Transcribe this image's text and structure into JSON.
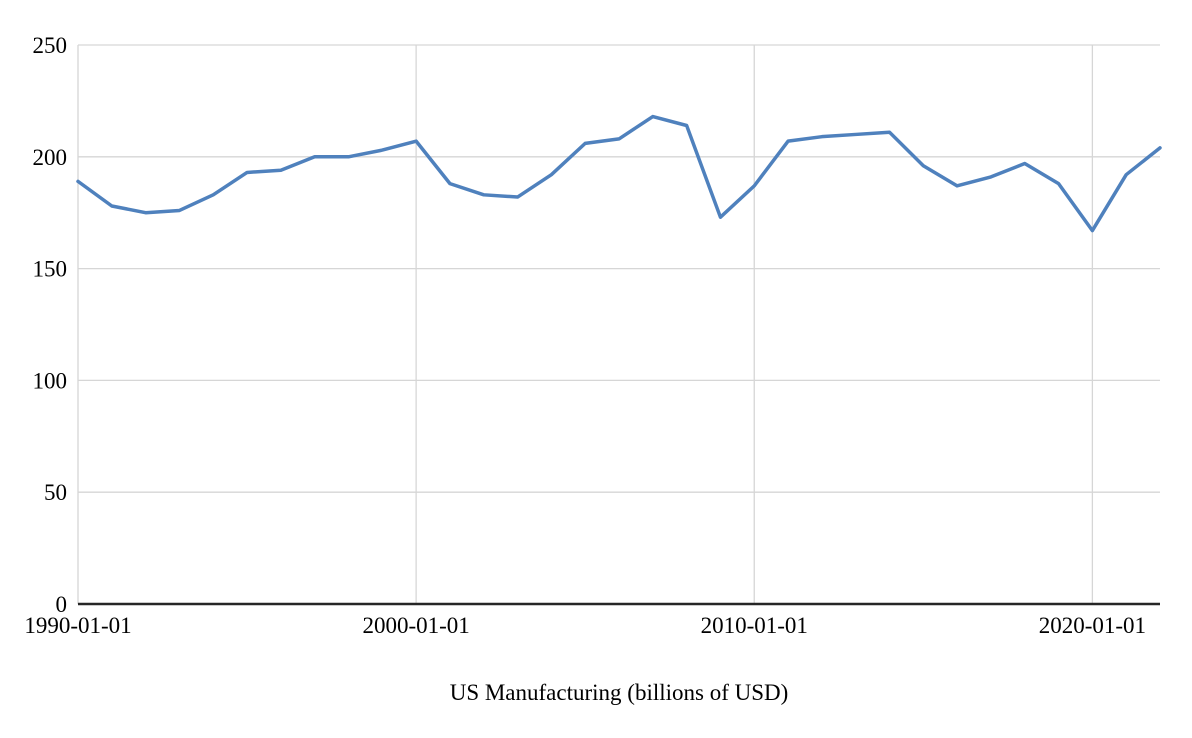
{
  "chart_data": {
    "type": "line",
    "title": "US Manufacturing (billions of USD)",
    "xlabel": "",
    "ylabel": "",
    "xlim": [
      1990,
      2022
    ],
    "ylim": [
      0,
      250
    ],
    "grid": true,
    "legend": "none",
    "x_ticks": [
      {
        "year": 1990,
        "label": "1990-01-01"
      },
      {
        "year": 2000,
        "label": "2000-01-01"
      },
      {
        "year": 2010,
        "label": "2010-01-01"
      },
      {
        "year": 2020,
        "label": "2020-01-01"
      }
    ],
    "y_ticks": [
      0,
      50,
      100,
      150,
      200,
      250
    ],
    "series": [
      {
        "name": "US Manufacturing",
        "x": [
          1990,
          1991,
          1992,
          1993,
          1994,
          1995,
          1996,
          1997,
          1998,
          1999,
          2000,
          2001,
          2002,
          2003,
          2004,
          2005,
          2006,
          2007,
          2008,
          2009,
          2010,
          2011,
          2012,
          2013,
          2014,
          2015,
          2016,
          2017,
          2018,
          2019,
          2020,
          2021,
          2022
        ],
        "values": [
          189,
          178,
          175,
          176,
          183,
          193,
          194,
          200,
          200,
          203,
          207,
          188,
          183,
          182,
          192,
          206,
          208,
          218,
          214,
          173,
          187,
          207,
          209,
          210,
          211,
          196,
          187,
          191,
          197,
          188,
          167,
          192,
          204
        ]
      }
    ],
    "colors": {
      "line": "#4f81bd",
      "grid": "#d6d6d6",
      "axis": "#262626",
      "text": "#000000",
      "background": "#ffffff"
    }
  }
}
